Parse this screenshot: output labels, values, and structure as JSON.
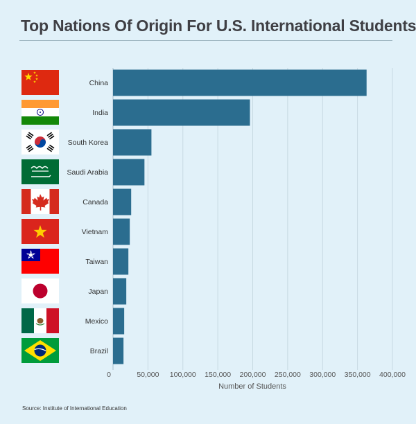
{
  "title": "Top Nations Of Origin For U.S. International Students",
  "source": "Source: Institute of International Education",
  "colors": {
    "background": "#e1f1f9",
    "bar": "#2b6d8f",
    "grid": "#c7d9e2"
  },
  "chart_data": {
    "type": "bar",
    "orientation": "horizontal",
    "title": "Top Nations Of Origin For U.S. International Students",
    "xlabel": "Number of Students",
    "ylabel": "",
    "xlim": [
      0,
      400000
    ],
    "x_ticks": [
      0,
      50000,
      100000,
      150000,
      200000,
      250000,
      300000,
      350000,
      400000
    ],
    "x_tick_labels": [
      "0",
      "50,000",
      "100,000",
      "150,000",
      "200,000",
      "250,000",
      "300,000",
      "350,000",
      "400,000"
    ],
    "grid": true,
    "categories": [
      "China",
      "India",
      "South Korea",
      "Saudi Arabia",
      "Canada",
      "Vietnam",
      "Taiwan",
      "Japan",
      "Mexico",
      "Brazil"
    ],
    "values": [
      363000,
      196000,
      55000,
      45000,
      26000,
      24000,
      22000,
      19000,
      16000,
      15000
    ],
    "flags": [
      "china-flag",
      "india-flag",
      "south-korea-flag",
      "saudi-arabia-flag",
      "canada-flag",
      "vietnam-flag",
      "taiwan-flag",
      "japan-flag",
      "mexico-flag",
      "brazil-flag"
    ]
  }
}
